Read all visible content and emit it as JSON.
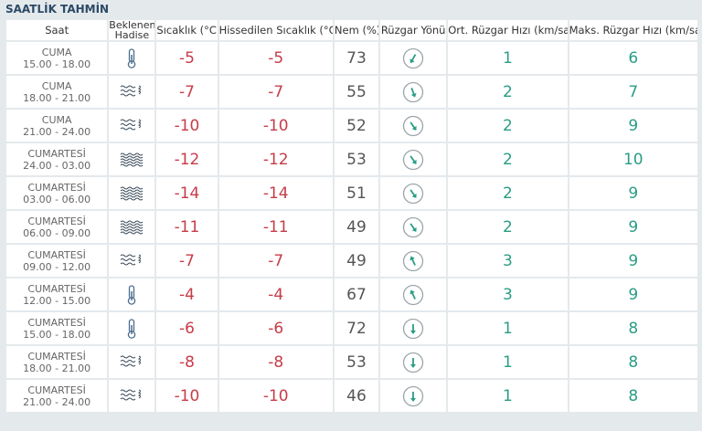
{
  "title": "SAATLİK TAHMİN",
  "headers": [
    "Saat",
    "Beklenen Hadise",
    "Sıcaklık (°C)",
    "Hissedilen Sıcaklık (°C)",
    "Nem (%)",
    "Rüzgar Yönü",
    "Ort. Rüzgar Hızı (km/sa)",
    "Maks. Rüzgar Hızı (km/sa)"
  ],
  "rows": [
    {
      "day": "CUMA",
      "time": "15.00 - 18.00",
      "temp": -5,
      "feels": -5,
      "humidity": 73,
      "avg_wind": 1,
      "max_wind": 6
    },
    {
      "day": "CUMA",
      "time": "18.00 - 21.00",
      "temp": -7,
      "feels": -7,
      "humidity": 55,
      "avg_wind": 2,
      "max_wind": 7
    },
    {
      "day": "CUMA",
      "time": "21.00 - 24.00",
      "temp": -10,
      "feels": -10,
      "humidity": 52,
      "avg_wind": 2,
      "max_wind": 9
    },
    {
      "day": "CUMARTESİ",
      "time": "24.00 - 03.00",
      "temp": -12,
      "feels": -12,
      "humidity": 53,
      "avg_wind": 2,
      "max_wind": 10
    },
    {
      "day": "CUMARTESİ",
      "time": "03.00 - 06.00",
      "temp": -14,
      "feels": -14,
      "humidity": 51,
      "avg_wind": 2,
      "max_wind": 9
    },
    {
      "day": "CUMARTESİ",
      "time": "06.00 - 09.00",
      "temp": -11,
      "feels": -11,
      "humidity": 49,
      "avg_wind": 2,
      "max_wind": 9
    },
    {
      "day": "CUMARTESİ",
      "time": "09.00 - 12.00",
      "temp": -7,
      "feels": -7,
      "humidity": 49,
      "avg_wind": 3,
      "max_wind": 9
    },
    {
      "day": "CUMARTESİ",
      "time": "12.00 - 15.00",
      "temp": -4,
      "feels": -4,
      "humidity": 67,
      "avg_wind": 3,
      "max_wind": 9
    },
    {
      "day": "CUMARTESİ",
      "time": "15.00 - 18.00",
      "temp": -6,
      "feels": -6,
      "humidity": 72,
      "avg_wind": 1,
      "max_wind": 8
    },
    {
      "day": "CUMARTESİ",
      "time": "18.00 - 21.00",
      "temp": -8,
      "feels": -8,
      "humidity": 53,
      "avg_wind": 1,
      "max_wind": 8
    },
    {
      "day": "CUMARTESİ",
      "time": "21.00 - 24.00",
      "temp": -10,
      "feels": -10,
      "humidity": 46,
      "avg_wind": 1,
      "max_wind": 8
    }
  ]
}
